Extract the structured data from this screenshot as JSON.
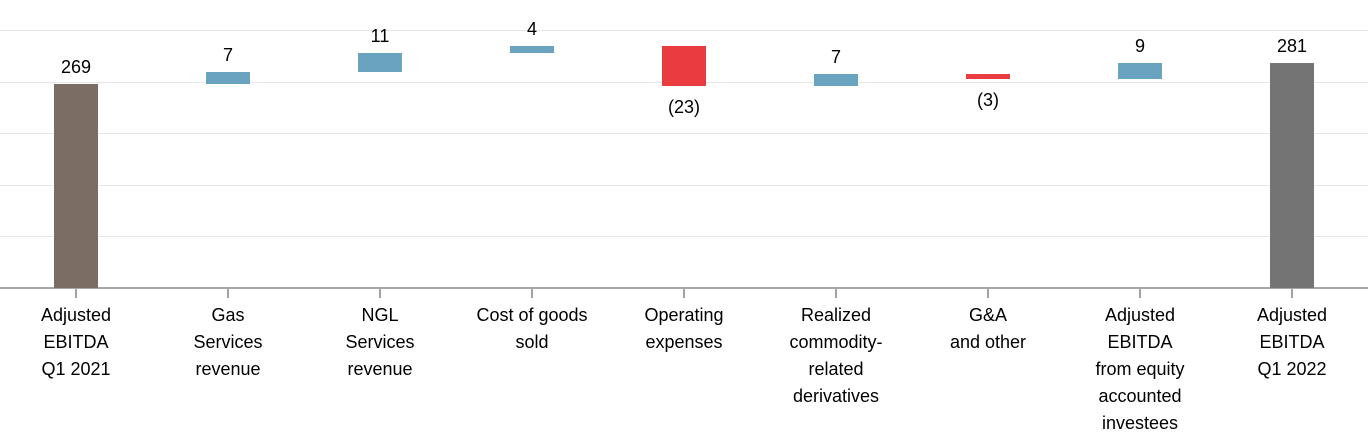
{
  "chart_data": {
    "type": "bar",
    "subtype": "waterfall",
    "title": "",
    "legend": "none",
    "grid": true,
    "y_axis_labels_visible": false,
    "axis": {
      "min": 150,
      "max": 300,
      "gridline_step": 30,
      "gridline_values": [
        180,
        210,
        240,
        270,
        300
      ]
    },
    "categories": [
      "Adjusted EBITDA Q1 2021",
      "Gas Services revenue",
      "NGL Services revenue",
      "Cost of goods sold",
      "Operating expenses",
      "Realized commodity-related derivatives",
      "G&A and other",
      "Adjusted EBITDA from equity accounted investees",
      "Adjusted EBITDA Q1 2022"
    ],
    "steps": [
      {
        "value": 269,
        "role": "start-total",
        "data_label": "269",
        "label_lines": [
          "Adjusted",
          "EBITDA",
          "Q1 2021"
        ]
      },
      {
        "value": 7,
        "role": "increase",
        "data_label": "7",
        "label_lines": [
          "Gas",
          "Services",
          "revenue"
        ]
      },
      {
        "value": 11,
        "role": "increase",
        "data_label": "11",
        "label_lines": [
          "NGL",
          "Services",
          "revenue"
        ]
      },
      {
        "value": 4,
        "role": "increase",
        "data_label": "4",
        "label_lines": [
          "Cost of goods",
          "sold"
        ]
      },
      {
        "value": -23,
        "role": "decrease",
        "data_label": "(23)",
        "label_lines": [
          "Operating",
          "expenses"
        ]
      },
      {
        "value": 7,
        "role": "increase",
        "data_label": "7",
        "label_lines": [
          "Realized",
          "commodity-",
          "related",
          "derivatives"
        ]
      },
      {
        "value": -3,
        "role": "decrease",
        "data_label": "(3)",
        "label_lines": [
          "G&A",
          "and other"
        ]
      },
      {
        "value": 9,
        "role": "increase",
        "data_label": "9",
        "label_lines": [
          "Adjusted",
          "EBITDA",
          "from equity",
          "accounted",
          "investees"
        ]
      },
      {
        "value": 281,
        "role": "end-total",
        "data_label": "281",
        "label_lines": [
          "Adjusted",
          "EBITDA",
          "Q1 2022"
        ]
      }
    ],
    "colors": {
      "start-total": "#7B6D64",
      "end-total": "#747474",
      "increase": "#69A3BF",
      "decrease": "#E93B40",
      "gridline": "#E8E8E8",
      "axis_line": "#A6A6A6",
      "tick_mark": "#A6A6A6",
      "label_text": "#000000",
      "background": "#FFFFFF"
    }
  }
}
